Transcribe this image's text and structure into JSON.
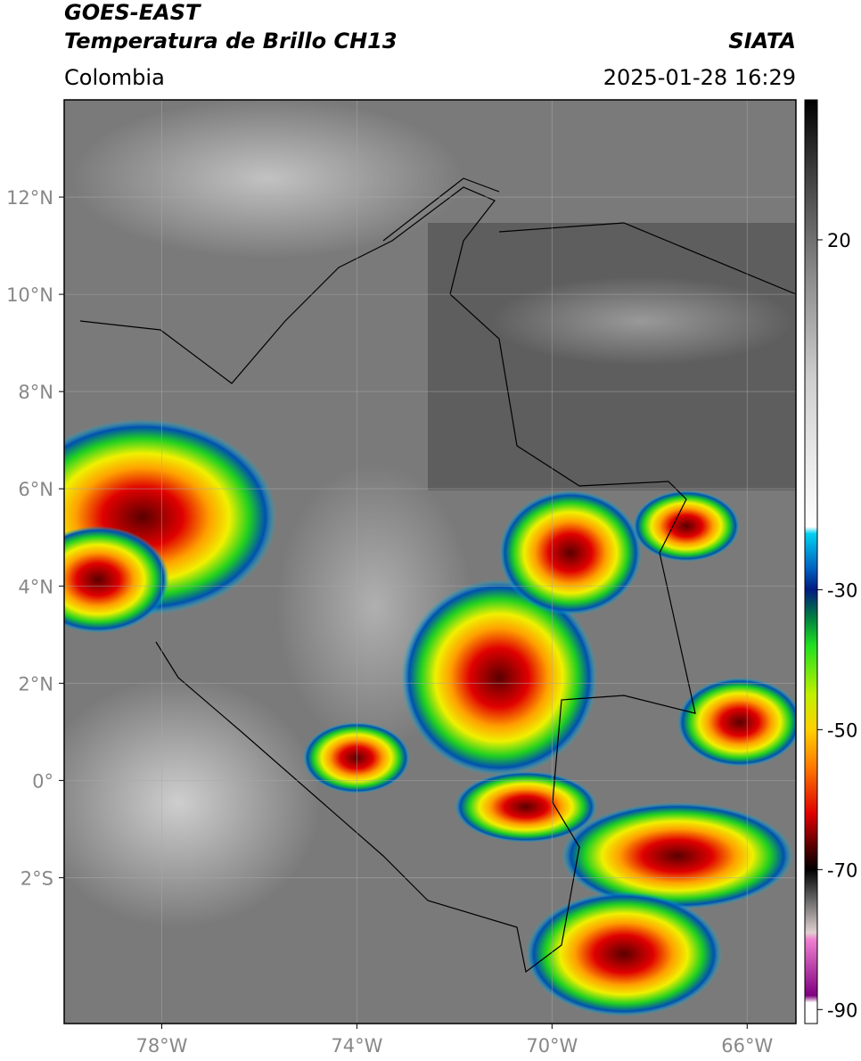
{
  "header": {
    "title": "GOES-EAST",
    "subtitle": "Temperatura de Brillo CH13",
    "source": "SIATA",
    "region": "Colombia",
    "datetime": "2025-01-28 16:29"
  },
  "map": {
    "xlim": [
      -80,
      -65
    ],
    "ylim": [
      -5,
      14
    ],
    "xticks": [
      {
        "value": -78,
        "label": "78°W"
      },
      {
        "value": -74,
        "label": "74°W"
      },
      {
        "value": -70,
        "label": "70°W"
      },
      {
        "value": -66,
        "label": "66°W"
      }
    ],
    "yticks": [
      {
        "value": 12,
        "label": "12°N"
      },
      {
        "value": 10,
        "label": "10°N"
      },
      {
        "value": 8,
        "label": "8°N"
      },
      {
        "value": 6,
        "label": "6°N"
      },
      {
        "value": 4,
        "label": "4°N"
      },
      {
        "value": 2,
        "label": "2°N"
      },
      {
        "value": 0,
        "label": "0°"
      },
      {
        "value": -2,
        "label": "2°S"
      }
    ],
    "grid": true
  },
  "colorbar": {
    "lim": [
      -92,
      40
    ],
    "ticks": [
      20,
      -30,
      -50,
      -70,
      -90
    ],
    "colormap": [
      {
        "value": 40,
        "color": "#000000"
      },
      {
        "value": 30,
        "color": "#3c3c3c"
      },
      {
        "value": 15,
        "color": "#8a8a8a"
      },
      {
        "value": 0,
        "color": "#cfcfcf"
      },
      {
        "value": -21,
        "color": "#ffffff"
      },
      {
        "value": -22,
        "color": "#00d0f0"
      },
      {
        "value": -27,
        "color": "#0060c0"
      },
      {
        "value": -30,
        "color": "#001a80"
      },
      {
        "value": -34,
        "color": "#008040"
      },
      {
        "value": -38,
        "color": "#20e020"
      },
      {
        "value": -45,
        "color": "#c0f000"
      },
      {
        "value": -50,
        "color": "#ffd000"
      },
      {
        "value": -55,
        "color": "#ff8000"
      },
      {
        "value": -62,
        "color": "#e00000"
      },
      {
        "value": -67,
        "color": "#500000"
      },
      {
        "value": -70,
        "color": "#000000"
      },
      {
        "value": -74,
        "color": "#606060"
      },
      {
        "value": -79,
        "color": "#e0d0d0"
      },
      {
        "value": -80,
        "color": "#f080d0"
      },
      {
        "value": -88,
        "color": "#800080"
      },
      {
        "value": -89,
        "color": "#ffffff"
      },
      {
        "value": -92,
        "color": "#ffffff"
      }
    ]
  }
}
